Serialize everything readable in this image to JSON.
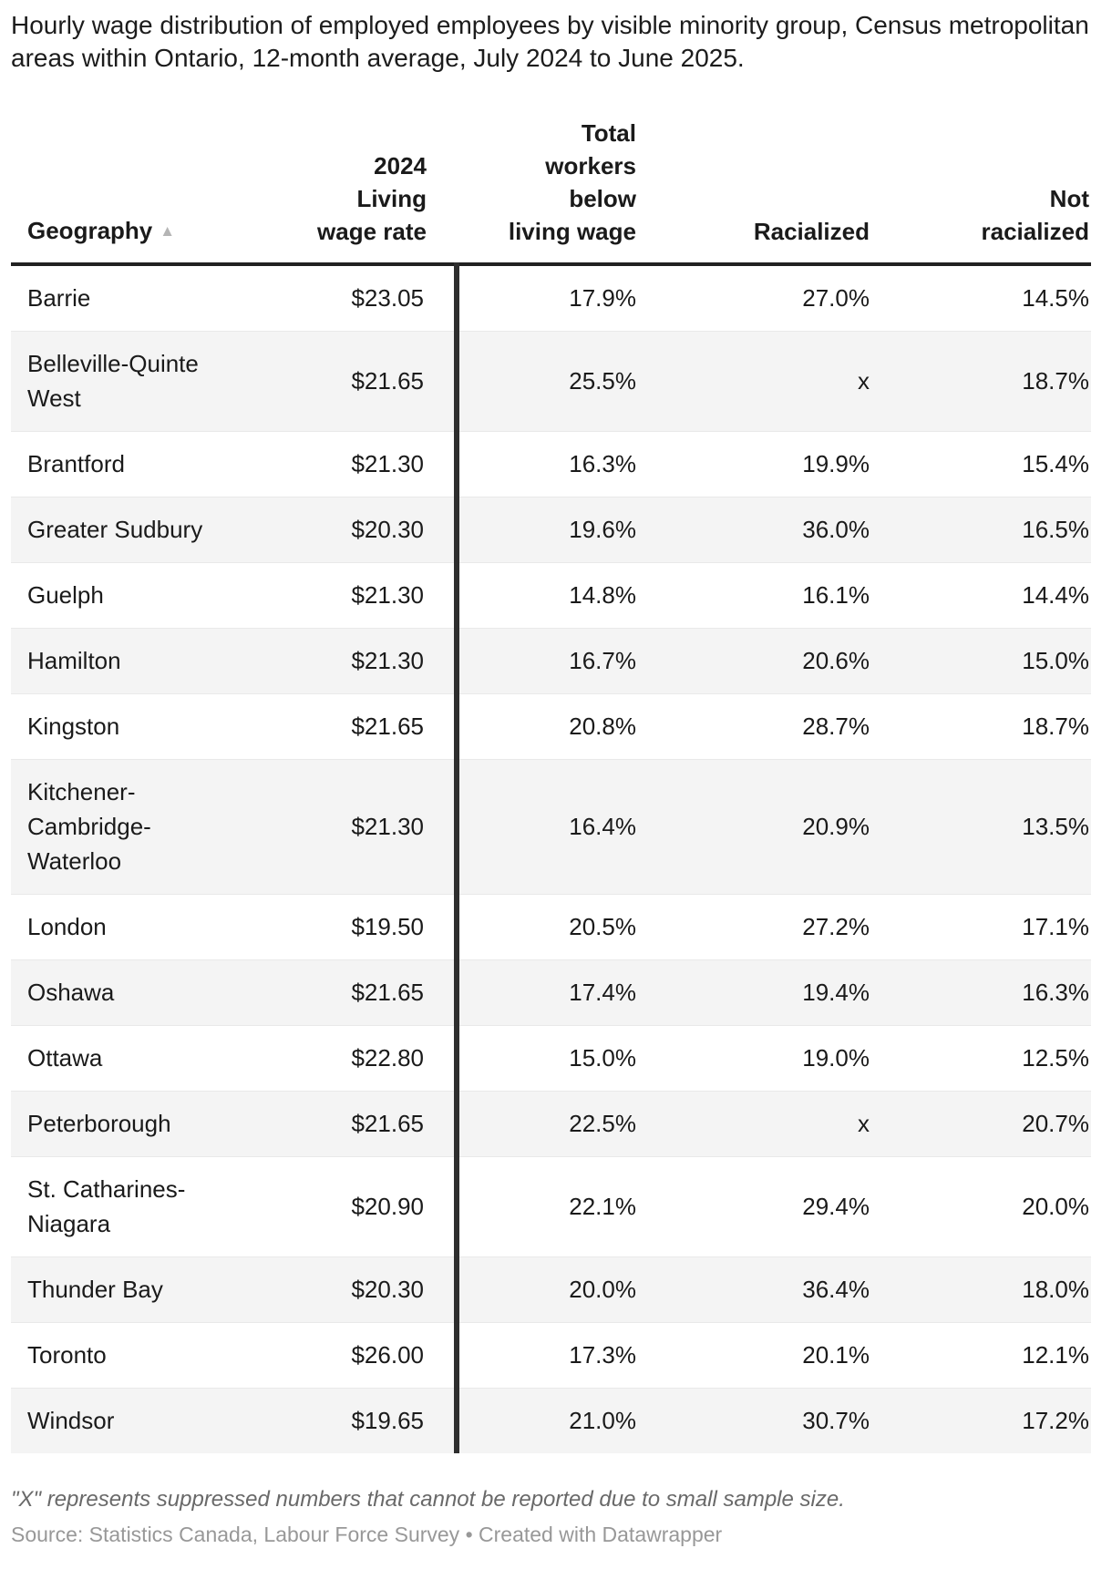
{
  "header": {
    "title": "Hourly wage distribution of employed employees by visible minority group, Census metropolitan areas within Ontario, 12-month average, July 2024 to June 2025."
  },
  "table": {
    "columns": [
      {
        "label": "Geography",
        "sort_indicator": "▲"
      },
      {
        "label": "2024\nLiving\nwage rate"
      },
      {
        "label": "Total\nworkers\nbelow\nliving wage"
      },
      {
        "label": "Racialized"
      },
      {
        "label": "Not\nracialized"
      }
    ],
    "rows": [
      {
        "geography": "Barrie",
        "living_wage_rate": "$23.05",
        "total_below_living_wage": "17.9%",
        "racialized": "27.0%",
        "not_racialized": "14.5%"
      },
      {
        "geography": "Belleville-Quinte West",
        "living_wage_rate": "$21.65",
        "total_below_living_wage": "25.5%",
        "racialized": "x",
        "not_racialized": "18.7%"
      },
      {
        "geography": "Brantford",
        "living_wage_rate": "$21.30",
        "total_below_living_wage": "16.3%",
        "racialized": "19.9%",
        "not_racialized": "15.4%"
      },
      {
        "geography": "Greater Sudbury",
        "living_wage_rate": "$20.30",
        "total_below_living_wage": "19.6%",
        "racialized": "36.0%",
        "not_racialized": "16.5%"
      },
      {
        "geography": "Guelph",
        "living_wage_rate": "$21.30",
        "total_below_living_wage": "14.8%",
        "racialized": "16.1%",
        "not_racialized": "14.4%"
      },
      {
        "geography": "Hamilton",
        "living_wage_rate": "$21.30",
        "total_below_living_wage": "16.7%",
        "racialized": "20.6%",
        "not_racialized": "15.0%"
      },
      {
        "geography": "Kingston",
        "living_wage_rate": "$21.65",
        "total_below_living_wage": "20.8%",
        "racialized": "28.7%",
        "not_racialized": "18.7%"
      },
      {
        "geography": "Kitchener-Cambridge-Waterloo",
        "living_wage_rate": "$21.30",
        "total_below_living_wage": "16.4%",
        "racialized": "20.9%",
        "not_racialized": "13.5%"
      },
      {
        "geography": "London",
        "living_wage_rate": "$19.50",
        "total_below_living_wage": "20.5%",
        "racialized": "27.2%",
        "not_racialized": "17.1%"
      },
      {
        "geography": "Oshawa",
        "living_wage_rate": "$21.65",
        "total_below_living_wage": "17.4%",
        "racialized": "19.4%",
        "not_racialized": "16.3%"
      },
      {
        "geography": "Ottawa",
        "living_wage_rate": "$22.80",
        "total_below_living_wage": "15.0%",
        "racialized": "19.0%",
        "not_racialized": "12.5%"
      },
      {
        "geography": "Peterborough",
        "living_wage_rate": "$21.65",
        "total_below_living_wage": "22.5%",
        "racialized": "x",
        "not_racialized": "20.7%"
      },
      {
        "geography": "St. Catharines-Niagara",
        "living_wage_rate": "$20.90",
        "total_below_living_wage": "22.1%",
        "racialized": "29.4%",
        "not_racialized": "20.0%"
      },
      {
        "geography": "Thunder Bay",
        "living_wage_rate": "$20.30",
        "total_below_living_wage": "20.0%",
        "racialized": "36.4%",
        "not_racialized": "18.0%"
      },
      {
        "geography": "Toronto",
        "living_wage_rate": "$26.00",
        "total_below_living_wage": "17.3%",
        "racialized": "20.1%",
        "not_racialized": "12.1%"
      },
      {
        "geography": "Windsor",
        "living_wage_rate": "$19.65",
        "total_below_living_wage": "21.0%",
        "racialized": "30.7%",
        "not_racialized": "17.2%"
      }
    ]
  },
  "footnote": "\"X\" represents suppressed numbers that cannot be reported due to small sample size.",
  "source": "Source: Statistics Canada, Labour Force Survey • Created with Datawrapper",
  "colors": {
    "header_border": "#212121",
    "column_divider": "#2e2e2e",
    "row_stripe": "#f4f4f4",
    "row_separator": "#e9e9e9",
    "text_primary": "#1a1a1a",
    "footnote_text": "#696969",
    "source_text": "#989898",
    "sort_arrow": "#b5b5b5"
  }
}
